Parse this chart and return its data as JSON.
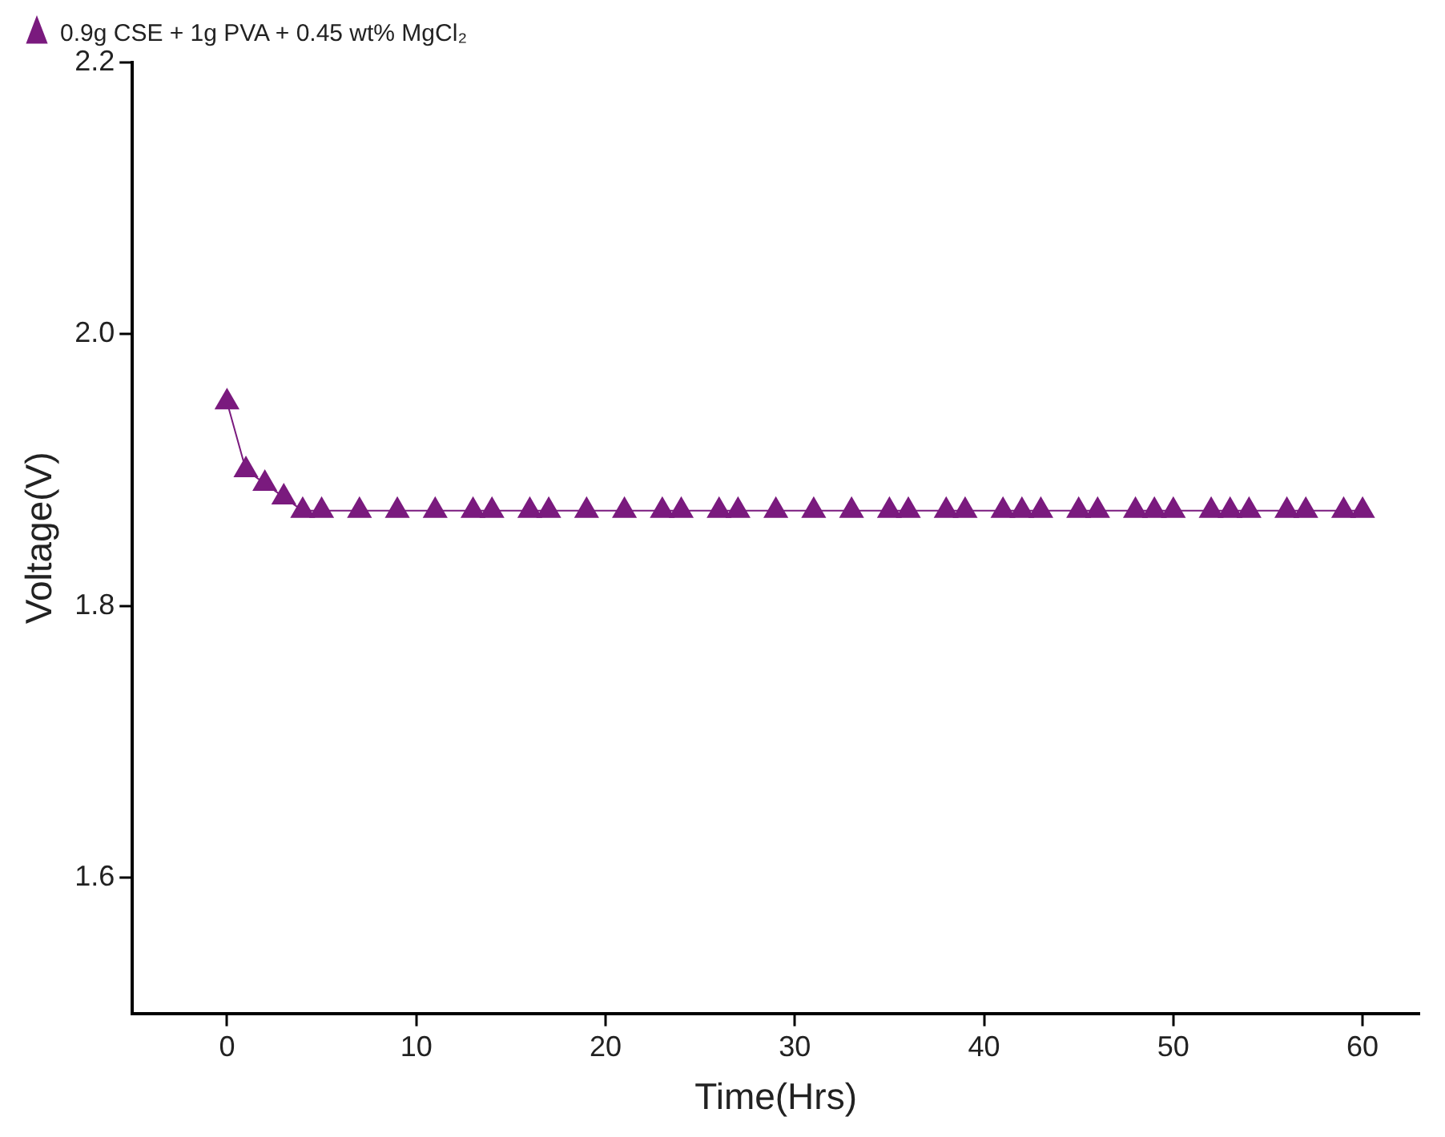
{
  "chart_data": {
    "type": "line",
    "xlabel": "Time(Hrs)",
    "ylabel": "Voltage(V)",
    "xlim": [
      -5,
      63
    ],
    "xticks": [
      0,
      10,
      20,
      30,
      40,
      50,
      60
    ],
    "ylim": [
      1.5,
      2.2
    ],
    "yticks": [
      {
        "value": 1.6,
        "label": "1.6"
      },
      {
        "value": 1.8,
        "label": "1.8"
      },
      {
        "value": 2,
        "label": "2.0"
      },
      {
        "value": 2.2,
        "label": "2.2"
      }
    ],
    "grid": false,
    "legend": "top left",
    "marker": "triangle",
    "line_style": "solid",
    "series": [
      {
        "name": "0.9g CSE + 1g PVA + 0.45 wt% MgCl₂",
        "color": "#7a1a7e",
        "x": [
          0,
          1,
          2,
          3,
          4,
          5,
          7,
          9,
          11,
          13,
          14,
          16,
          17,
          19,
          21,
          23,
          24,
          26,
          27,
          29,
          31,
          33,
          35,
          36,
          38,
          39,
          41,
          42,
          43,
          45,
          46,
          48,
          49,
          50,
          52,
          53,
          54,
          56,
          57,
          59,
          60
        ],
        "values": [
          1.95,
          1.9,
          1.89,
          1.88,
          1.87,
          1.87,
          1.87,
          1.87,
          1.87,
          1.87,
          1.87,
          1.87,
          1.87,
          1.87,
          1.87,
          1.87,
          1.87,
          1.87,
          1.87,
          1.87,
          1.87,
          1.87,
          1.87,
          1.87,
          1.87,
          1.87,
          1.87,
          1.87,
          1.87,
          1.87,
          1.87,
          1.87,
          1.87,
          1.87,
          1.87,
          1.87,
          1.87,
          1.87,
          1.87,
          1.87,
          1.87
        ]
      }
    ]
  }
}
